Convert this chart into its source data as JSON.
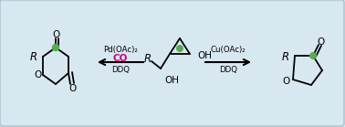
{
  "bg_color": "#d8e8f0",
  "border_color": "#a8c0d0",
  "text_color": "#000000",
  "green_color": "#5aaa50",
  "magenta_color": "#cc0088",
  "arrow_color": "#111111",
  "figsize": [
    3.78,
    1.39
  ],
  "dpi": 100,
  "left_label_pd": "Pd(OAc)₂",
  "left_label_co": "CO",
  "left_label_ddq": "DDQ",
  "right_label_cu": "Cu(OAc)₂",
  "right_label_ddq": "DDQ"
}
